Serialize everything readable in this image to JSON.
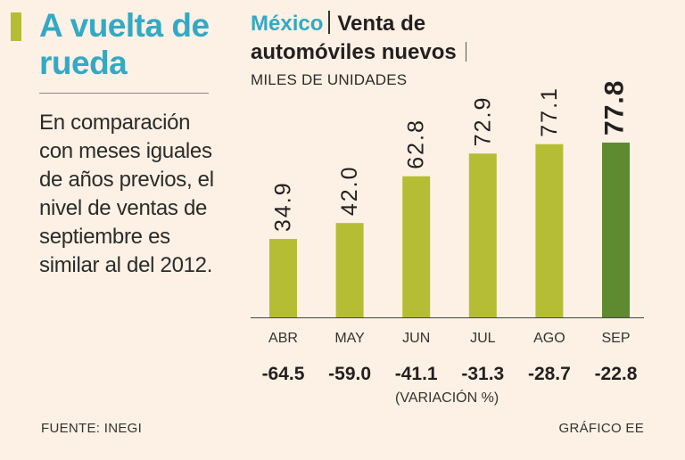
{
  "headline": "A vuelta de rueda",
  "intro_text": "En comparación con meses iguales de años previos, el nivel de ventas de septiembre es similar al del 2012.",
  "title": {
    "country": "México",
    "line1_rest": "Venta de",
    "line2": "automóviles nuevos"
  },
  "units": "MILES DE UNIDADES",
  "chart_data": {
    "type": "bar",
    "title": "Venta de automóviles nuevos",
    "ylabel": "MILES DE UNIDADES",
    "categories": [
      "ABR",
      "MAY",
      "JUN",
      "JUL",
      "AGO",
      "SEP"
    ],
    "values": [
      34.9,
      42.0,
      62.8,
      72.9,
      77.1,
      77.8
    ],
    "value_labels": [
      "34.9",
      "42.0",
      "62.8",
      "72.9",
      "77.1",
      "77.8"
    ],
    "variation": [
      "-64.5",
      "-59.0",
      "-41.1",
      "-31.3",
      "-28.7",
      "-22.8"
    ],
    "variation_label": "(VARIACIÓN %)",
    "highlight_index": 5,
    "ylim": [
      0,
      100
    ],
    "colors": {
      "bar": "#b5bd34",
      "highlight": "#5f8a30"
    }
  },
  "source": "FUENTE: INEGI",
  "credit": "GRÁFICO EE"
}
